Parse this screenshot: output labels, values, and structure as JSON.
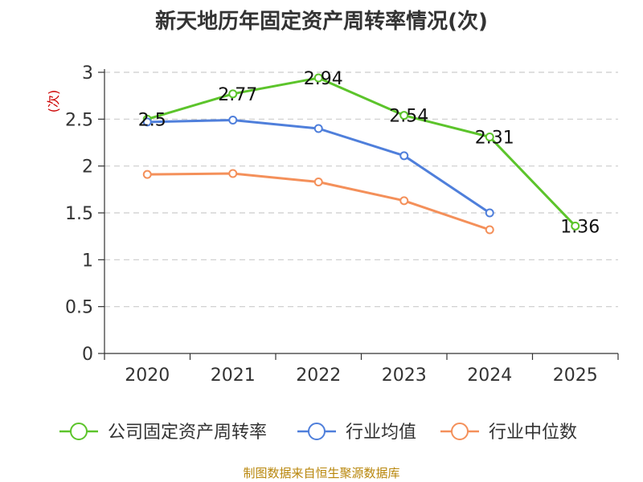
{
  "chart_data": {
    "type": "line",
    "title": "新天地历年固定资产周转率情况(次)",
    "ylabel": "(次)",
    "xlabel": "",
    "categories": [
      "2020",
      "2021",
      "2022",
      "2023",
      "2024",
      "2025"
    ],
    "ylim": [
      0,
      3
    ],
    "yticks": [
      "0",
      "0.5",
      "1",
      "1.5",
      "2",
      "2.5",
      "3"
    ],
    "grid": true,
    "legend_position": "bottom",
    "series": [
      {
        "name": "公司固定资产周转率",
        "color": "#5cc42b",
        "values": [
          2.5,
          2.77,
          2.94,
          2.54,
          2.31,
          1.36
        ],
        "labels": [
          "2.5",
          "2.77",
          "2.94",
          "2.54",
          "2.31",
          "1.36"
        ]
      },
      {
        "name": "行业均值",
        "color": "#4f7fdb",
        "values": [
          2.47,
          2.49,
          2.4,
          2.11,
          1.5,
          null
        ]
      },
      {
        "name": "行业中位数",
        "color": "#f4905a",
        "values": [
          1.91,
          1.92,
          1.83,
          1.63,
          1.32,
          null
        ]
      }
    ],
    "source": "制图数据来自恒生聚源数据库"
  }
}
